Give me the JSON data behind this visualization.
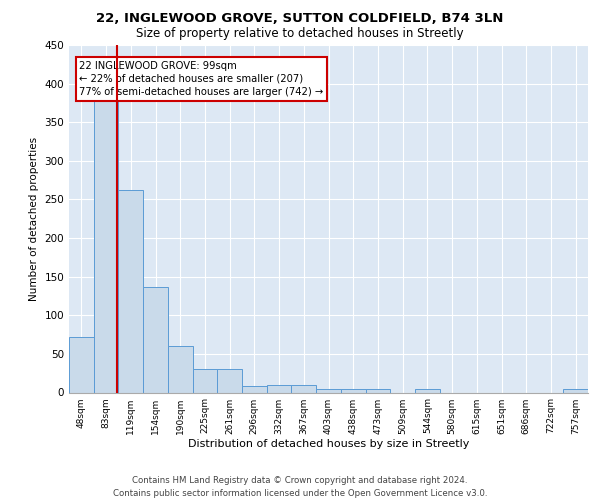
{
  "title1": "22, INGLEWOOD GROVE, SUTTON COLDFIELD, B74 3LN",
  "title2": "Size of property relative to detached houses in Streetly",
  "xlabel": "Distribution of detached houses by size in Streetly",
  "ylabel": "Number of detached properties",
  "categories": [
    "48sqm",
    "83sqm",
    "119sqm",
    "154sqm",
    "190sqm",
    "225sqm",
    "261sqm",
    "296sqm",
    "332sqm",
    "367sqm",
    "403sqm",
    "438sqm",
    "473sqm",
    "509sqm",
    "544sqm",
    "580sqm",
    "615sqm",
    "651sqm",
    "686sqm",
    "722sqm",
    "757sqm"
  ],
  "values": [
    72,
    380,
    262,
    136,
    60,
    31,
    31,
    9,
    10,
    10,
    5,
    4,
    5,
    0,
    4,
    0,
    0,
    0,
    0,
    0,
    4
  ],
  "bar_color": "#c9daea",
  "bar_edge_color": "#5b9bd5",
  "highlight_color": "#cc0000",
  "annotation_text": "22 INGLEWOOD GROVE: 99sqm\n← 22% of detached houses are smaller (207)\n77% of semi-detached houses are larger (742) →",
  "annotation_box_color": "#ffffff",
  "annotation_box_edge": "#cc0000",
  "ylim": [
    0,
    450
  ],
  "yticks": [
    0,
    50,
    100,
    150,
    200,
    250,
    300,
    350,
    400,
    450
  ],
  "background_color": "#dde8f4",
  "footer1": "Contains HM Land Registry data © Crown copyright and database right 2024.",
  "footer2": "Contains public sector information licensed under the Open Government Licence v3.0."
}
